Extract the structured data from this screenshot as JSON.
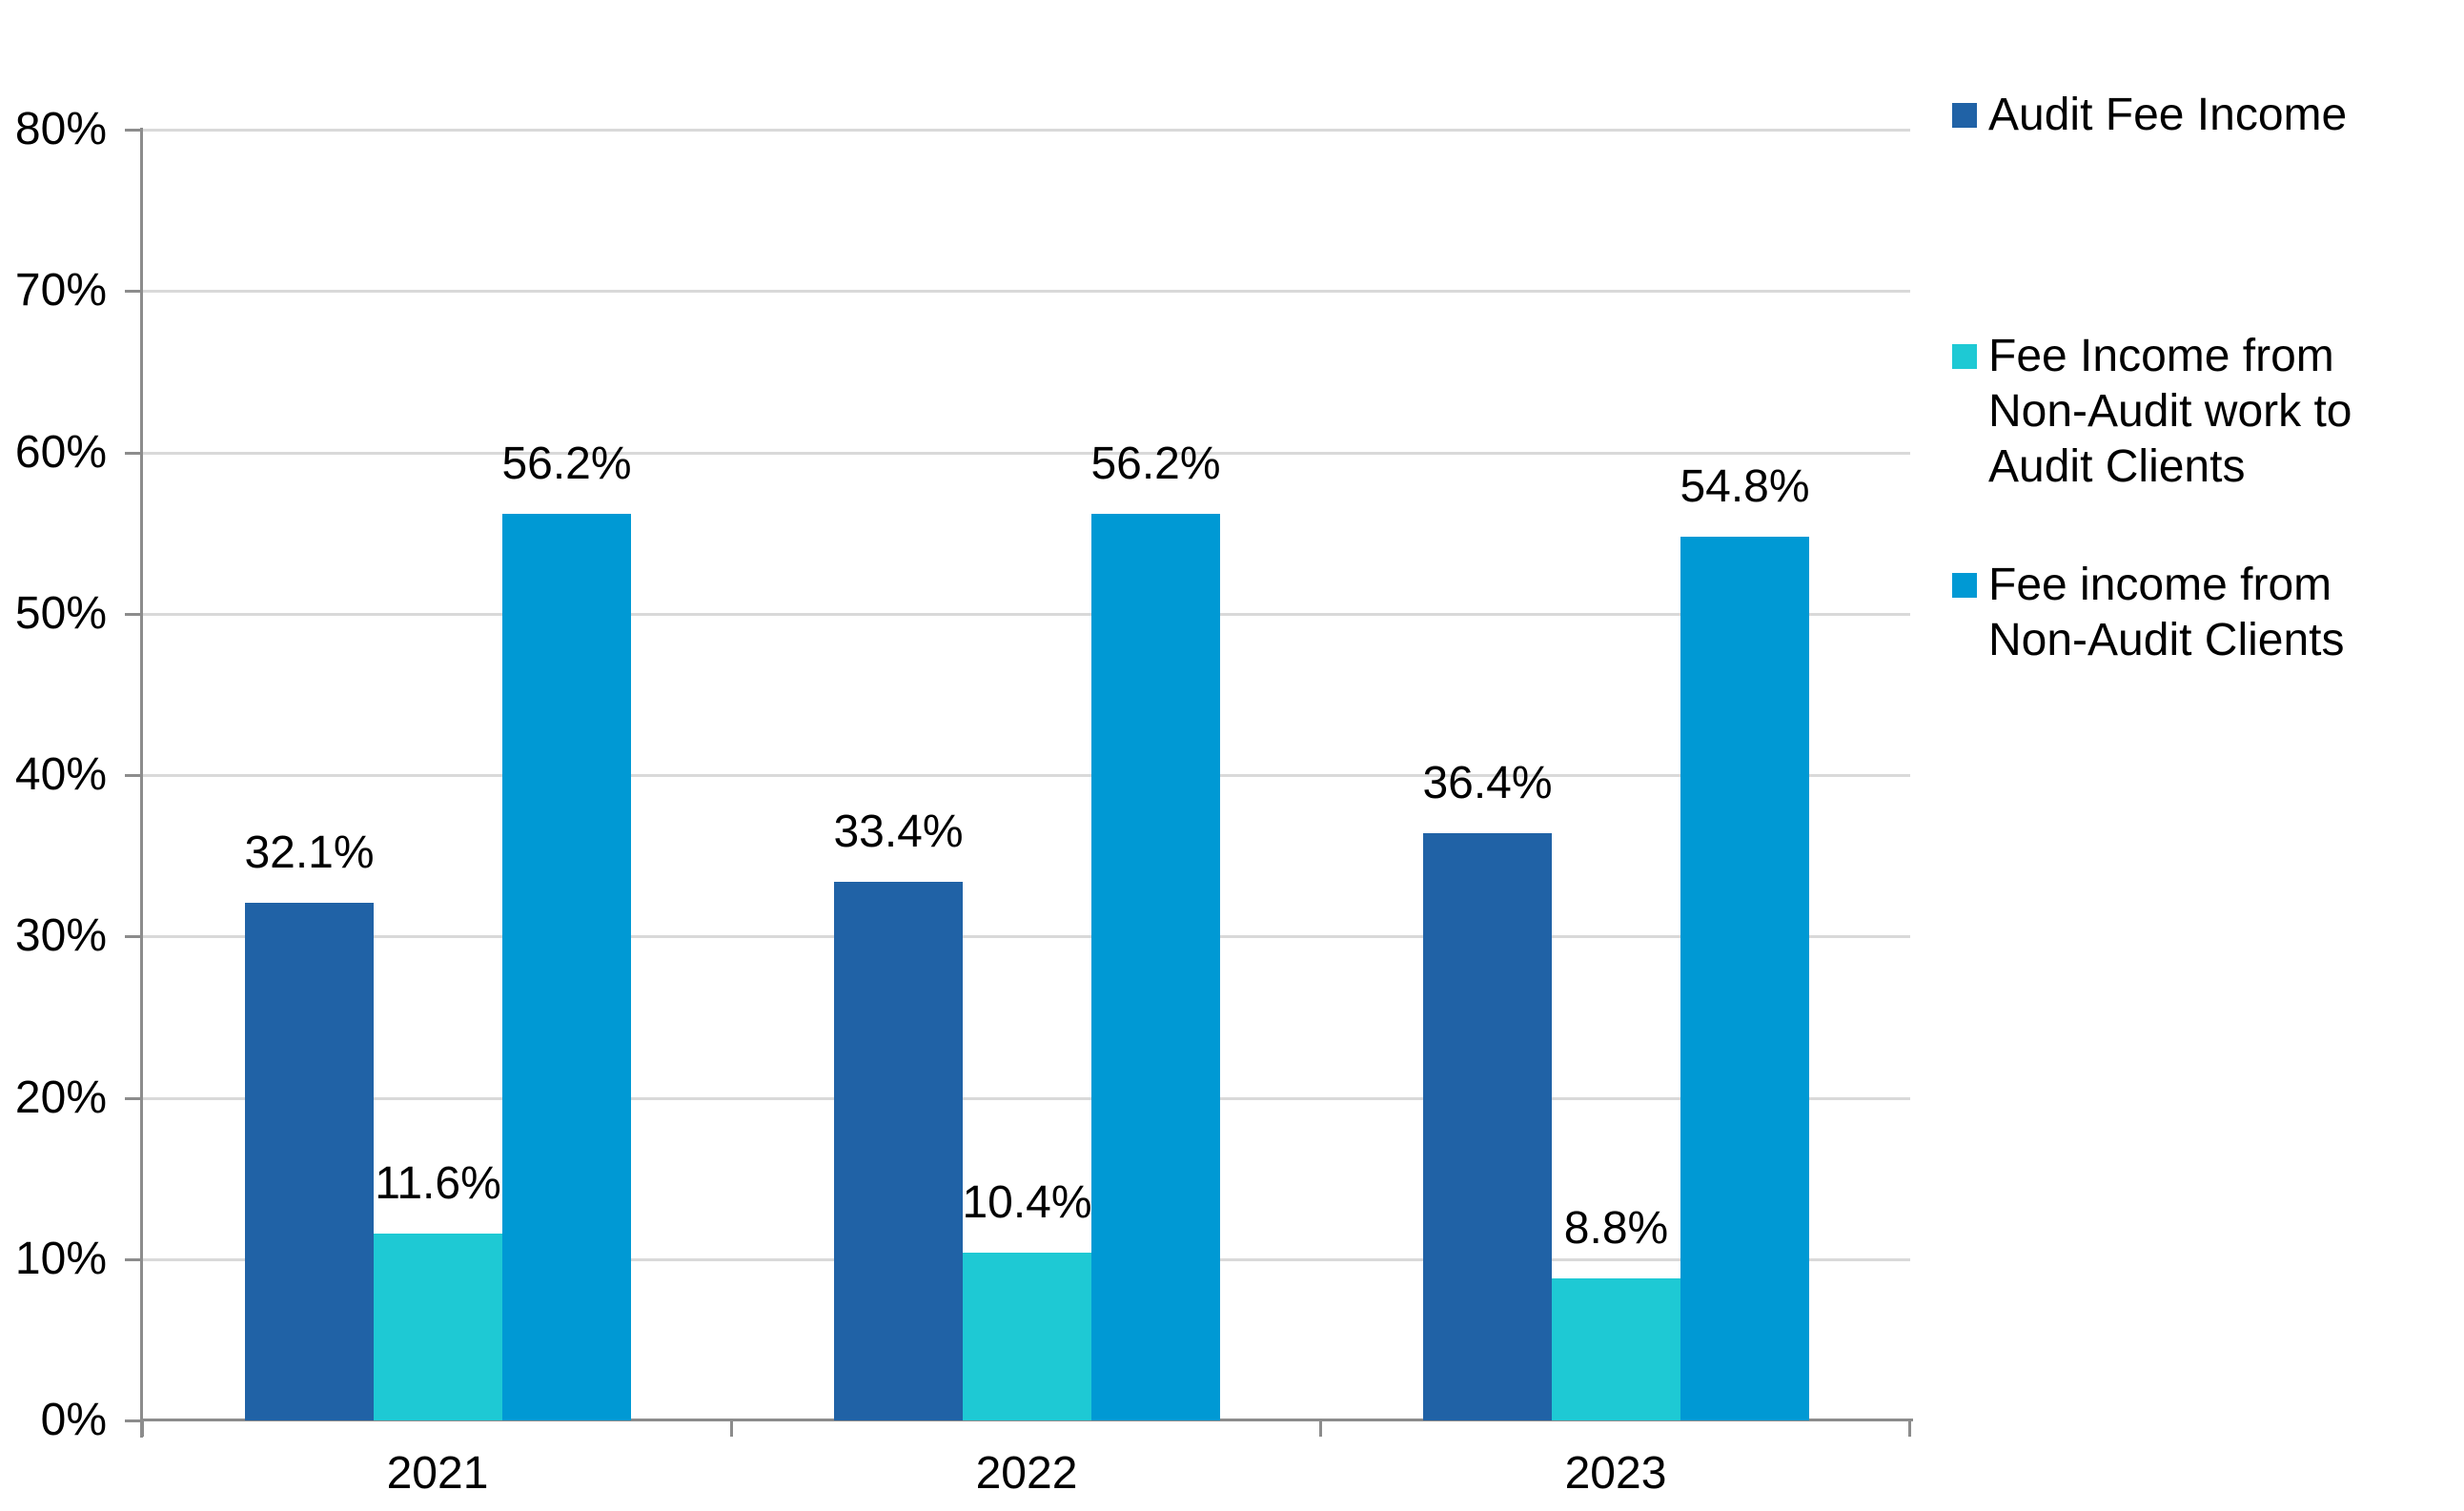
{
  "chart_data": {
    "type": "bar",
    "title": "",
    "categories": [
      "2021",
      "2022",
      "2023"
    ],
    "series": [
      {
        "name": "Audit Fee Income",
        "color": "#2062A6",
        "values": [
          32.1,
          33.4,
          36.4
        ],
        "labels": [
          "32.1%",
          "33.4%",
          "36.4%"
        ]
      },
      {
        "name": "Fee Income from Non-Audit work to Audit Clients",
        "color": "#1EC9D4",
        "values": [
          11.6,
          10.4,
          8.8
        ],
        "labels": [
          "11.6%",
          "10.4%",
          "8.8%"
        ]
      },
      {
        "name": "Fee income from Non-Audit Clients",
        "color": "#0099D4",
        "values": [
          56.2,
          56.2,
          54.8
        ],
        "labels": [
          "56.2%",
          "56.2%",
          "54.8%"
        ]
      }
    ],
    "y_axis": {
      "min": 0,
      "max": 80,
      "step": 10,
      "tick_labels": [
        "0%",
        "10%",
        "20%",
        "30%",
        "40%",
        "50%",
        "60%",
        "70%",
        "80%"
      ]
    },
    "legend_position": "right",
    "grid": true,
    "colors": {
      "gridline": "#D9D9D9",
      "axis": "#8C8C8C",
      "text": "#000000",
      "background": "#FFFFFF"
    }
  }
}
